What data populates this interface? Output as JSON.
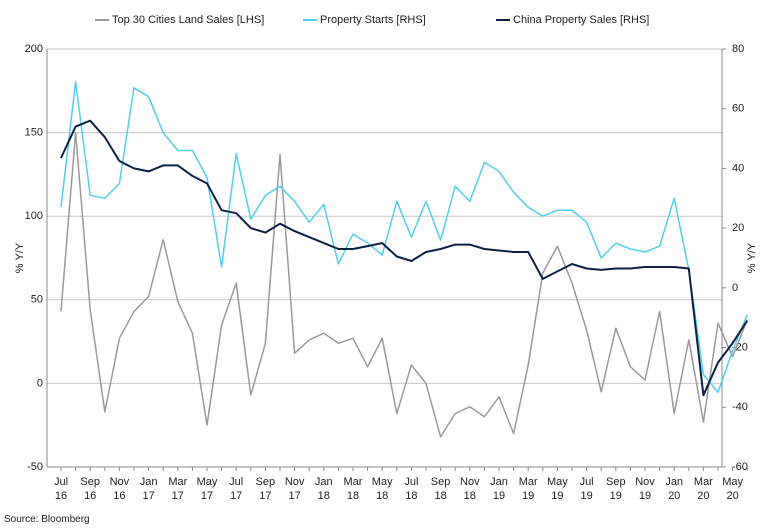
{
  "chart_data": {
    "type": "line",
    "source": "Source: Bloomberg",
    "ylabel": "% Y/Y",
    "y2label": "% Y/Y",
    "categories": [
      "Jul\n16",
      null,
      "Sep\n16",
      null,
      "Nov\n16",
      null,
      "Jan\n17",
      null,
      "Mar\n17",
      null,
      "May\n17",
      null,
      "Jul\n17",
      null,
      "Sep\n17",
      null,
      "Nov\n17",
      null,
      "Jan\n18",
      null,
      "Mar\n18",
      null,
      "May\n18",
      null,
      "Jul\n18",
      null,
      "Sep\n18",
      null,
      "Nov\n18",
      null,
      "Jan\n19",
      null,
      "Mar\n19",
      null,
      "May\n19",
      null,
      "Jul\n19",
      null,
      "Sep\n19",
      null,
      "Nov\n19",
      null,
      "Jan\n20",
      null,
      "Mar\n20",
      null,
      "May\n20",
      null
    ],
    "ylim": [
      -50,
      200
    ],
    "yticks": [
      -50,
      0,
      50,
      100,
      150,
      200
    ],
    "y2lim": [
      -60,
      80
    ],
    "y2ticks": [
      -60,
      -40,
      -20,
      0,
      20,
      40,
      60,
      80
    ],
    "grid": true,
    "legend": "top",
    "series": [
      {
        "name": "Top 30 Cities Land Sales [LHS]",
        "color": "#9a9a9a",
        "values": [
          43,
          150,
          44,
          -17,
          27,
          43,
          52,
          86,
          49,
          30,
          -25,
          35,
          60,
          -7,
          24,
          137,
          18,
          26,
          30,
          24,
          27,
          10,
          27,
          -18,
          11,
          0,
          -32,
          -18,
          -14,
          -20,
          -8,
          -30,
          11,
          66,
          82,
          60,
          32,
          -5,
          33,
          10,
          2,
          43,
          -18,
          26,
          -23,
          36,
          16,
          38
        ]
      },
      {
        "name": "Property Starts [RHS]",
        "color": "#4fd0ee",
        "axis": "y2",
        "values": [
          27,
          69,
          31,
          30,
          35,
          67,
          64,
          52,
          46,
          46,
          37,
          7,
          45,
          23,
          31,
          34,
          29,
          22,
          28,
          8,
          18,
          15,
          11,
          29,
          17,
          29,
          16,
          34,
          29,
          42,
          39,
          32,
          27,
          24,
          26,
          26,
          22,
          10,
          15,
          13,
          12,
          14,
          30,
          6,
          -29,
          -35,
          -21,
          -9
        ]
      },
      {
        "name": "China Property Sales [RHS]",
        "color": "#0d2145",
        "axis": "y2",
        "values": [
          43.5,
          54,
          56,
          50.5,
          42.5,
          40,
          39,
          41,
          41,
          37.5,
          35,
          26,
          25,
          20,
          18.5,
          21.5,
          19,
          17,
          15,
          13,
          13,
          14,
          15,
          10.5,
          9,
          12,
          13,
          14.5,
          14.5,
          13,
          12.5,
          12,
          12,
          3,
          5.5,
          8,
          6.5,
          6,
          6.5,
          6.5,
          7,
          7,
          7,
          6.5,
          -36,
          -25,
          -18.5,
          -11
        ]
      }
    ]
  }
}
